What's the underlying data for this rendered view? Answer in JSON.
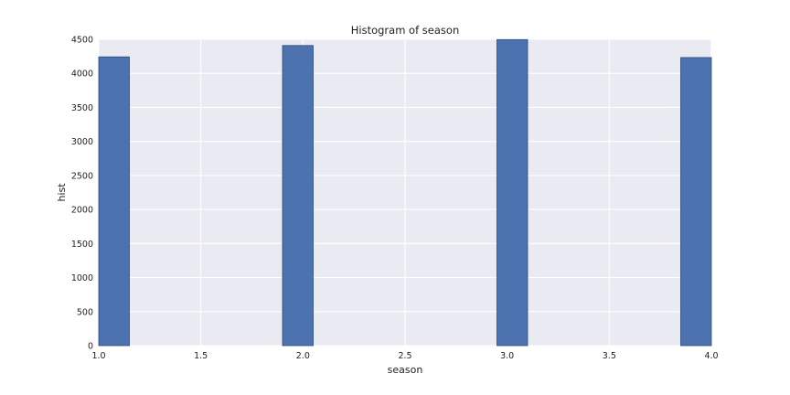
{
  "chart_data": {
    "type": "bar",
    "title": "Histogram of season",
    "xlabel": "season",
    "ylabel": "hist",
    "xlim": [
      1.0,
      4.0
    ],
    "ylim": [
      0,
      4500
    ],
    "grid": true,
    "x_ticks": [
      "1.0",
      "1.5",
      "2.0",
      "2.5",
      "3.0",
      "3.5",
      "4.0"
    ],
    "y_ticks": [
      "0",
      "500",
      "1000",
      "1500",
      "2000",
      "2500",
      "3000",
      "3500",
      "4000",
      "4500"
    ],
    "bins": [
      {
        "x_start": 1.0,
        "x_end": 1.15,
        "value": 4242
      },
      {
        "x_start": 1.15,
        "x_end": 1.3,
        "value": 0
      },
      {
        "x_start": 1.3,
        "x_end": 1.45,
        "value": 0
      },
      {
        "x_start": 1.45,
        "x_end": 1.6,
        "value": 0
      },
      {
        "x_start": 1.6,
        "x_end": 1.75,
        "value": 0
      },
      {
        "x_start": 1.75,
        "x_end": 1.9,
        "value": 0
      },
      {
        "x_start": 1.9,
        "x_end": 2.05,
        "value": 4409
      },
      {
        "x_start": 2.05,
        "x_end": 2.2,
        "value": 0
      },
      {
        "x_start": 2.2,
        "x_end": 2.35,
        "value": 0
      },
      {
        "x_start": 2.35,
        "x_end": 2.5,
        "value": 0
      },
      {
        "x_start": 2.5,
        "x_end": 2.65,
        "value": 0
      },
      {
        "x_start": 2.65,
        "x_end": 2.8,
        "value": 0
      },
      {
        "x_start": 2.8,
        "x_end": 2.95,
        "value": 0
      },
      {
        "x_start": 2.95,
        "x_end": 3.1,
        "value": 4496
      },
      {
        "x_start": 3.1,
        "x_end": 3.25,
        "value": 0
      },
      {
        "x_start": 3.25,
        "x_end": 3.4,
        "value": 0
      },
      {
        "x_start": 3.4,
        "x_end": 3.55,
        "value": 0
      },
      {
        "x_start": 3.55,
        "x_end": 3.7,
        "value": 0
      },
      {
        "x_start": 3.7,
        "x_end": 3.85,
        "value": 0
      },
      {
        "x_start": 3.85,
        "x_end": 4.0,
        "value": 4232
      }
    ],
    "colors": {
      "bar_fill": "#4c72b0",
      "bar_edge": "#2e4a7a",
      "plot_background": "#eaeaf2",
      "grid": "#ffffff",
      "text": "#222222"
    }
  }
}
